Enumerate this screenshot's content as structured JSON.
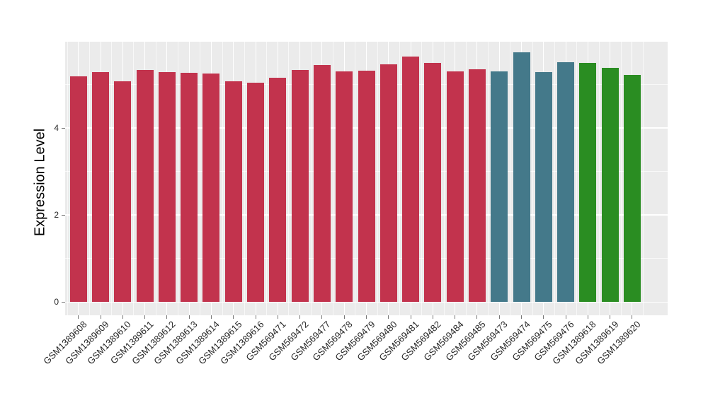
{
  "chart_data": {
    "type": "bar",
    "title": "",
    "xlabel": "",
    "ylabel": "Expression Level",
    "yticks": [
      0,
      2,
      4
    ],
    "ygrid_major": [
      0,
      2,
      4,
      6
    ],
    "ygrid_minor": [
      1,
      3,
      5
    ],
    "ylim": [
      -0.3,
      6.02
    ],
    "grid": "on",
    "legend": "none",
    "panel_bg": "#EBEBEB",
    "grid_color": "#FFFFFF",
    "tick_color": "#777777",
    "text_color": "#262626",
    "color_palette": {
      "group1": "#C2334D",
      "group2": "#44798A",
      "group3": "#2A8D22"
    },
    "categories": [
      "GSM1389608",
      "GSM1389609",
      "GSM1389610",
      "GSM1389611",
      "GSM1389612",
      "GSM1389613",
      "GSM1389614",
      "GSM1389615",
      "GSM1389616",
      "GSM569471",
      "GSM569472",
      "GSM569477",
      "GSM569478",
      "GSM569479",
      "GSM569480",
      "GSM569481",
      "GSM569482",
      "GSM569484",
      "GSM569485",
      "GSM569473",
      "GSM569474",
      "GSM569475",
      "GSM569476",
      "GSM1389618",
      "GSM1389619",
      "GSM1389620"
    ],
    "values": [
      5.19,
      5.28,
      5.07,
      5.34,
      5.29,
      5.27,
      5.25,
      5.07,
      5.04,
      5.16,
      5.33,
      5.44,
      5.3,
      5.32,
      5.47,
      5.64,
      5.5,
      5.3,
      5.35,
      5.3,
      5.74,
      5.29,
      5.52,
      5.49,
      5.39,
      5.22
    ],
    "colors": [
      "#C2334D",
      "#C2334D",
      "#C2334D",
      "#C2334D",
      "#C2334D",
      "#C2334D",
      "#C2334D",
      "#C2334D",
      "#C2334D",
      "#C2334D",
      "#C2334D",
      "#C2334D",
      "#C2334D",
      "#C2334D",
      "#C2334D",
      "#C2334D",
      "#C2334D",
      "#C2334D",
      "#C2334D",
      "#44798A",
      "#44798A",
      "#44798A",
      "#44798A",
      "#2A8D22",
      "#2A8D22",
      "#2A8D22"
    ]
  }
}
